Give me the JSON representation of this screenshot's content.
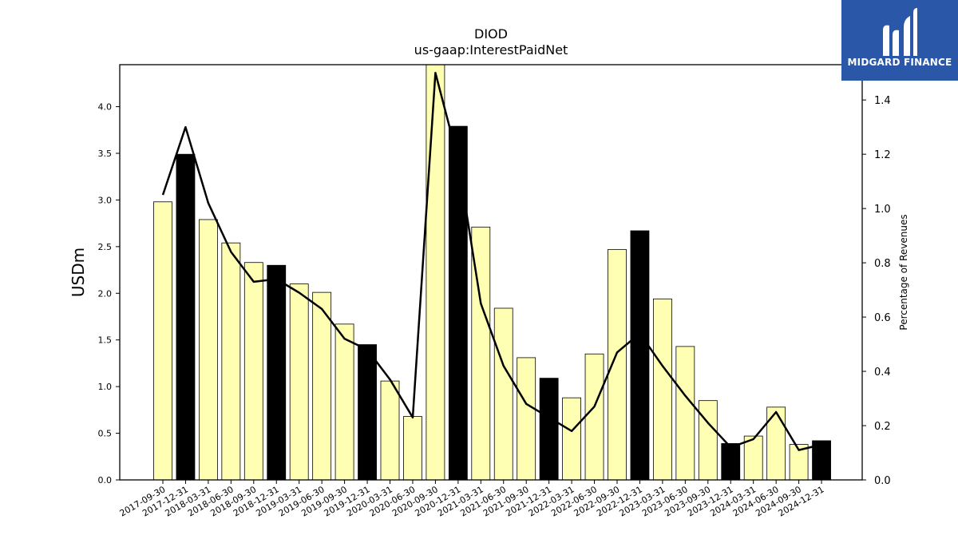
{
  "chart_data": {
    "type": "bar",
    "title": "DIOD",
    "subtitle": "us-gaap:InterestPaidNet",
    "ylabel": "USDm",
    "y2label": "Percentage of Revenues",
    "ylim": [
      0,
      4.45
    ],
    "y2lim": [
      0,
      1.53
    ],
    "yticks": [
      "0.0",
      "0.5",
      "1.0",
      "1.5",
      "2.0",
      "2.5",
      "3.0",
      "3.5",
      "4.0"
    ],
    "y2ticks": [
      "0.0",
      "0.2",
      "0.4",
      "0.6",
      "0.8",
      "1.0",
      "1.2",
      "1.4"
    ],
    "categories": [
      "2017-09-30",
      "2017-12-31",
      "2018-03-31",
      "2018-06-30",
      "2018-09-30",
      "2018-12-31",
      "2019-03-31",
      "2019-06-30",
      "2019-09-30",
      "2019-12-31",
      "2020-03-31",
      "2020-06-30",
      "2020-09-30",
      "2020-12-31",
      "2021-03-31",
      "2021-06-30",
      "2021-09-30",
      "2021-12-31",
      "2022-03-31",
      "2022-06-30",
      "2022-09-30",
      "2022-12-31",
      "2023-03-31",
      "2023-06-30",
      "2023-09-30",
      "2023-12-31",
      "2024-03-31",
      "2024-06-30",
      "2024-09-30",
      "2024-12-31"
    ],
    "series": [
      {
        "kind": "bar",
        "axis": "left",
        "values": [
          2.98,
          3.49,
          2.79,
          2.54,
          2.33,
          2.3,
          2.1,
          2.01,
          1.67,
          1.45,
          1.06,
          0.68,
          4.47,
          3.79,
          2.71,
          1.84,
          1.31,
          1.09,
          0.88,
          1.35,
          2.47,
          2.67,
          1.94,
          1.43,
          0.85,
          0.39,
          0.47,
          0.78,
          0.38,
          0.42
        ],
        "highlight": [
          false,
          true,
          false,
          false,
          false,
          true,
          false,
          false,
          false,
          true,
          false,
          false,
          false,
          true,
          false,
          false,
          false,
          true,
          false,
          false,
          false,
          true,
          false,
          false,
          false,
          true,
          false,
          false,
          false,
          true
        ]
      },
      {
        "kind": "line",
        "axis": "right",
        "values": [
          1.05,
          1.3,
          1.02,
          0.84,
          0.73,
          0.74,
          0.69,
          0.63,
          0.52,
          0.48,
          0.37,
          0.23,
          1.5,
          1.18,
          0.65,
          0.42,
          0.28,
          0.23,
          0.18,
          0.27,
          0.47,
          0.54,
          0.42,
          0.31,
          0.21,
          0.12,
          0.15,
          0.25,
          0.11,
          0.13
        ]
      }
    ],
    "colors": {
      "bar": "#ffffb3",
      "bar_highlight": "#000000",
      "line": "#000000",
      "edge": "#000000"
    }
  },
  "logo": {
    "text": "MIDGARD FINANCE",
    "background": "#2b57a8"
  }
}
